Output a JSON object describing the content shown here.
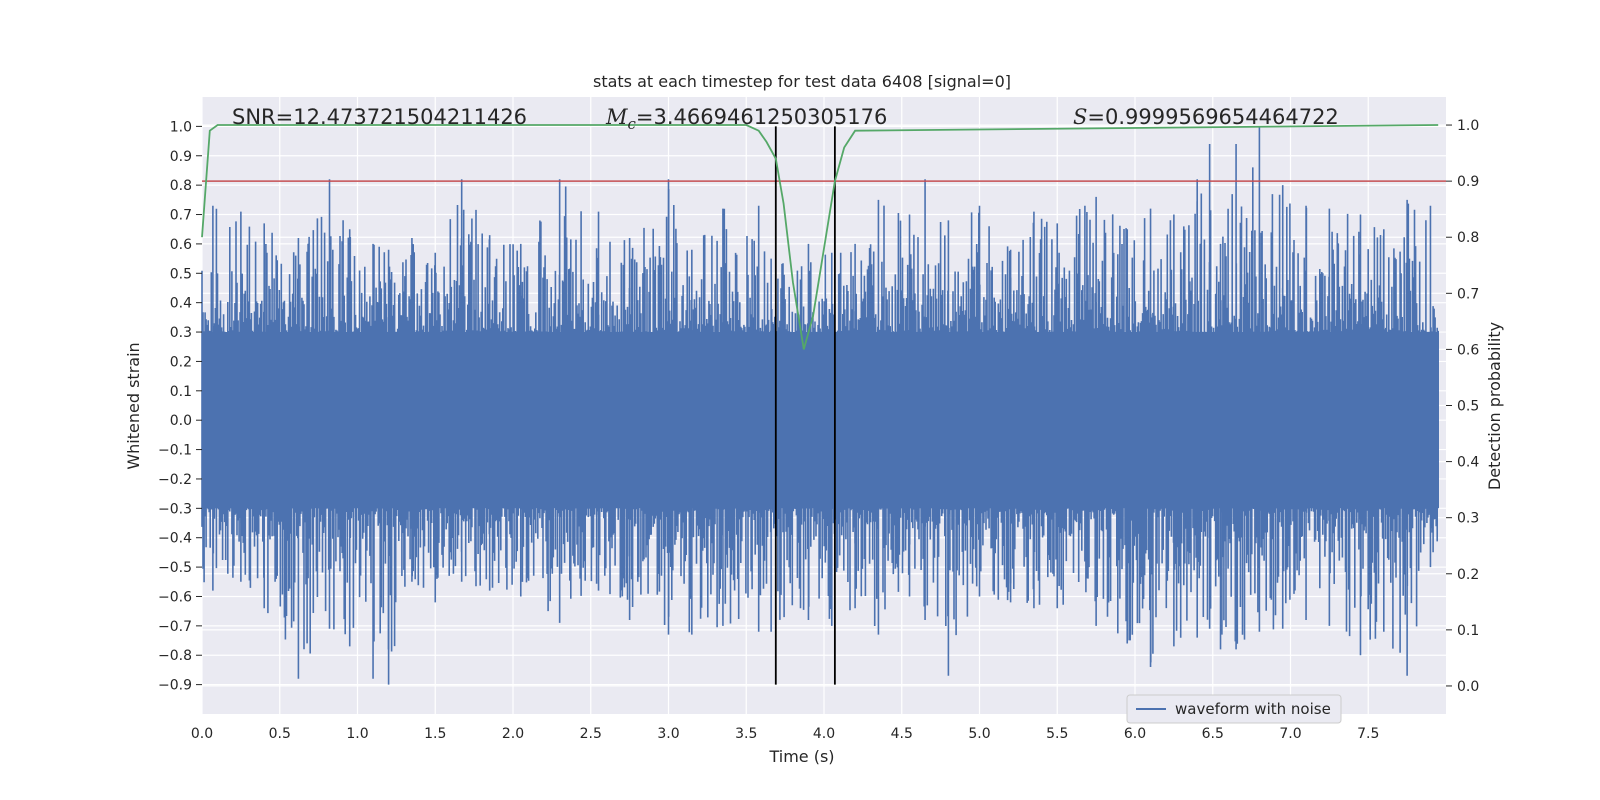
{
  "chart_data": {
    "type": "line",
    "title": "stats at each timestep for test data 6408 [signal=0]",
    "xlabel": "Time (s)",
    "ylabel_left": "Whitened strain",
    "ylabel_right": "Detection probability",
    "xlim": [
      0.0,
      8.0
    ],
    "ylim_left": [
      -1.0,
      1.1
    ],
    "ylim_right": [
      -0.05,
      1.05
    ],
    "x_ticks": [
      "0.0",
      "0.5",
      "1.0",
      "1.5",
      "2.0",
      "2.5",
      "3.0",
      "3.5",
      "4.0",
      "4.5",
      "5.0",
      "5.5",
      "6.0",
      "6.5",
      "7.0",
      "7.5"
    ],
    "y_ticks_left": [
      "-0.9",
      "-0.8",
      "-0.7",
      "-0.6",
      "-0.5",
      "-0.4",
      "-0.3",
      "-0.2",
      "-0.1",
      "0.0",
      "0.1",
      "0.2",
      "0.3",
      "0.4",
      "0.5",
      "0.6",
      "0.7",
      "0.8",
      "0.9",
      "1.0"
    ],
    "y_ticks_right": [
      "0.0",
      "0.1",
      "0.2",
      "0.3",
      "0.4",
      "0.5",
      "0.6",
      "0.7",
      "0.8",
      "0.9",
      "1.0"
    ],
    "grid": true,
    "legend_position": "lower-right",
    "annotations": {
      "snr": "SNR=12.473721504211426",
      "mc_symbol": "M",
      "mc_sub": "c",
      "mc_value": "=3.4669461250305176",
      "s_symbol": "S",
      "s_value": "=0.9999569654464722"
    },
    "threshold": {
      "value_right_axis": 0.9,
      "color": "#c44e52"
    },
    "vertical_lines_x": [
      3.69,
      4.07
    ],
    "series": [
      {
        "name": "waveform with noise",
        "color": "#4c72b0",
        "axis": "left",
        "peaks": [
          [
            0.07,
            0.73,
            -0.58
          ],
          [
            0.25,
            0.71,
            -0.55
          ],
          [
            0.4,
            0.67,
            -0.64
          ],
          [
            0.62,
            0.62,
            -0.88
          ],
          [
            0.82,
            0.82,
            -0.71
          ],
          [
            0.95,
            0.65,
            -0.77
          ],
          [
            1.1,
            0.6,
            -0.88
          ],
          [
            1.2,
            0.58,
            -0.9
          ],
          [
            1.35,
            0.62,
            -0.55
          ],
          [
            1.5,
            0.57,
            -0.62
          ],
          [
            1.67,
            0.82,
            -0.55
          ],
          [
            1.85,
            0.63,
            -0.58
          ],
          [
            2.05,
            0.6,
            -0.6
          ],
          [
            2.3,
            0.82,
            -0.69
          ],
          [
            2.55,
            0.71,
            -0.58
          ],
          [
            2.75,
            0.62,
            -0.68
          ],
          [
            3.0,
            0.82,
            -0.73
          ],
          [
            3.15,
            0.58,
            -0.73
          ],
          [
            3.35,
            0.72,
            -0.7
          ],
          [
            3.58,
            0.73,
            -0.72
          ],
          [
            3.66,
            0.55,
            -0.72
          ],
          [
            3.9,
            0.6,
            -0.68
          ],
          [
            4.05,
            0.57,
            -0.7
          ],
          [
            4.2,
            0.6,
            -0.64
          ],
          [
            4.35,
            0.75,
            -0.73
          ],
          [
            4.55,
            0.7,
            -0.6
          ],
          [
            4.65,
            0.82,
            -0.68
          ],
          [
            4.8,
            0.68,
            -0.87
          ],
          [
            5.0,
            0.73,
            -0.6
          ],
          [
            5.2,
            0.58,
            -0.62
          ],
          [
            5.35,
            0.71,
            -0.64
          ],
          [
            5.5,
            0.67,
            -0.64
          ],
          [
            5.75,
            0.76,
            -0.7
          ],
          [
            5.95,
            0.65,
            -0.76
          ],
          [
            6.1,
            0.72,
            -0.84
          ],
          [
            6.25,
            0.7,
            -0.77
          ],
          [
            6.4,
            0.82,
            -0.74
          ],
          [
            6.48,
            0.94,
            -0.71
          ],
          [
            6.55,
            0.6,
            -0.78
          ],
          [
            6.65,
            0.94,
            -0.78
          ],
          [
            6.8,
            1.0,
            -0.72
          ],
          [
            6.95,
            0.8,
            -0.71
          ],
          [
            7.1,
            0.73,
            -0.68
          ],
          [
            7.25,
            0.72,
            -0.7
          ],
          [
            7.45,
            0.7,
            -0.8
          ],
          [
            7.6,
            0.65,
            -0.72
          ],
          [
            7.75,
            0.75,
            -0.87
          ],
          [
            7.9,
            0.73,
            -0.5
          ]
        ]
      },
      {
        "name": "Detection probability",
        "color": "#55a868",
        "axis": "right",
        "x": [
          0.0,
          0.05,
          0.1,
          3.5,
          3.58,
          3.63,
          3.69,
          3.74,
          3.8,
          3.87,
          3.93,
          4.0,
          4.07,
          4.13,
          4.2,
          7.95
        ],
        "y": [
          0.8,
          0.99,
          1.0,
          1.0,
          0.99,
          0.97,
          0.94,
          0.86,
          0.72,
          0.6,
          0.66,
          0.78,
          0.9,
          0.96,
          0.99,
          1.0
        ]
      }
    ]
  }
}
